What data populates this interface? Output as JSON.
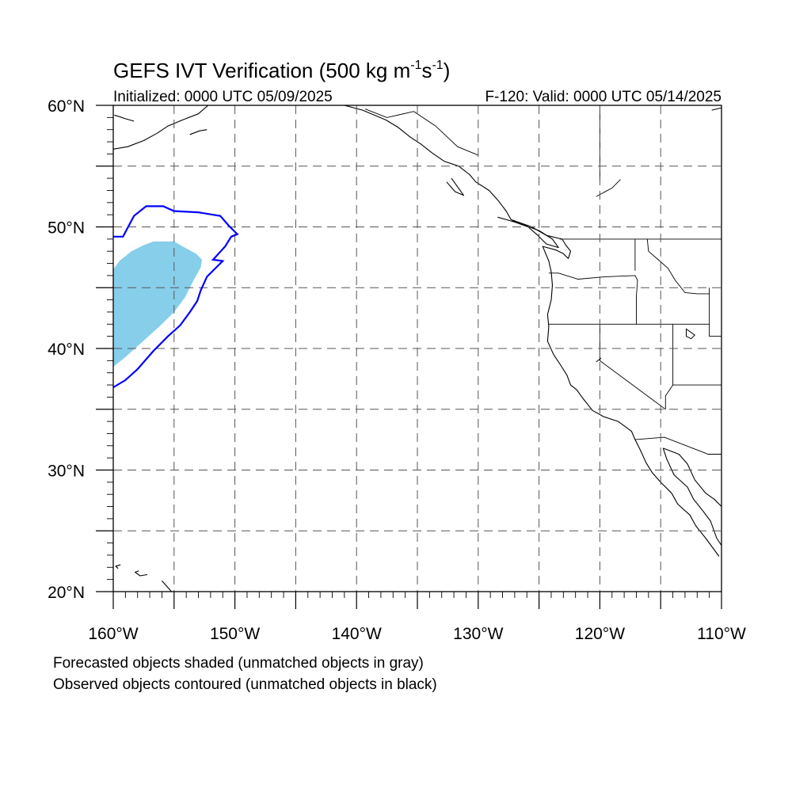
{
  "figure": {
    "title_main": "GEFS IVT Verification (500 kg m",
    "title_sup1": "-1",
    "title_mid": "s",
    "title_sup2": "-1",
    "title_end": ")",
    "init_label": "Initialized: 0000 UTC 05/09/2025",
    "valid_label": "F-120: Valid: 0000 UTC 05/14/2025",
    "footnote_1": "Forecasted objects shaded (unmatched objects in gray)",
    "footnote_2": "Observed objects contoured (unmatched objects in black)"
  },
  "map": {
    "lon_range": [
      -160,
      -110
    ],
    "lat_range": [
      20,
      60
    ],
    "grid": "dashed every 5 degrees",
    "lat_labels": [
      "20°N",
      "30°N",
      "40°N",
      "50°N",
      "60°N"
    ],
    "lon_labels": [
      "160°W",
      "150°W",
      "140°W",
      "130°W",
      "120°W",
      "110°W"
    ],
    "colors": {
      "forecast_fill": "#87ceeb",
      "observed_contour": "#0000ff",
      "coastline": "#000000",
      "grid": "#555555"
    },
    "forecast_object_outline": [
      [
        -160,
        38.5
      ],
      [
        -159.1,
        39.2
      ],
      [
        -158.1,
        40.1
      ],
      [
        -157.1,
        41
      ],
      [
        -156.1,
        41.9
      ],
      [
        -155,
        43
      ],
      [
        -154.1,
        44.2
      ],
      [
        -153.4,
        45.6
      ],
      [
        -152.8,
        46.7
      ],
      [
        -152.7,
        47.3
      ],
      [
        -153.2,
        47.8
      ],
      [
        -154.3,
        48.4
      ],
      [
        -155,
        48.8
      ],
      [
        -156.7,
        48.8
      ],
      [
        -157.5,
        48.5
      ],
      [
        -158.5,
        48
      ],
      [
        -159.5,
        47.2
      ],
      [
        -160,
        46.5
      ]
    ],
    "observed_object_contour": [
      [
        -160,
        36.8
      ],
      [
        -159,
        37.4
      ],
      [
        -158,
        38.3
      ],
      [
        -156.7,
        39.8
      ],
      [
        -155.5,
        41
      ],
      [
        -154.5,
        41.9
      ],
      [
        -153.7,
        43
      ],
      [
        -153.1,
        43.9
      ],
      [
        -152.8,
        44.8
      ],
      [
        -152.3,
        45.9
      ],
      [
        -151.4,
        46.8
      ],
      [
        -151,
        47.2
      ],
      [
        -151.8,
        47.3
      ],
      [
        -150.8,
        48.4
      ],
      [
        -150.3,
        49.2
      ],
      [
        -149.8,
        49.4
      ],
      [
        -150.5,
        50.1
      ],
      [
        -151.2,
        50.9
      ],
      [
        -153,
        51.2
      ],
      [
        -155,
        51.3
      ],
      [
        -155.9,
        51.7
      ],
      [
        -157.3,
        51.7
      ],
      [
        -158.3,
        50.9
      ],
      [
        -159.2,
        49.2
      ],
      [
        -160,
        49.2
      ]
    ],
    "coastlines": [
      [
        [
          -160,
          56.4
        ],
        [
          -158.8,
          56.6
        ],
        [
          -157.5,
          57.1
        ],
        [
          -156.4,
          57.7
        ],
        [
          -155.5,
          58.3
        ],
        [
          -154.3,
          58.8
        ],
        [
          -153,
          59.3
        ],
        [
          -152.2,
          60
        ]
      ],
      [
        [
          -159.9,
          59.2
        ],
        [
          -159,
          58.9
        ],
        [
          -158.3,
          58.7
        ]
      ],
      [
        [
          -153.7,
          57.6
        ],
        [
          -152.9,
          57.9
        ],
        [
          -152.3,
          58
        ]
      ],
      [
        [
          -141,
          60
        ],
        [
          -139.5,
          59.6
        ],
        [
          -137.6,
          58.8
        ],
        [
          -136.6,
          58.2
        ],
        [
          -135.6,
          57.4
        ],
        [
          -134.7,
          56.8
        ],
        [
          -133.8,
          56.1
        ],
        [
          -132.8,
          55.4
        ],
        [
          -131.6,
          55
        ],
        [
          -130.7,
          54.3
        ],
        [
          -130.2,
          53.7
        ],
        [
          -129.1,
          53
        ],
        [
          -128.3,
          52.1
        ],
        [
          -127.7,
          51.3
        ],
        [
          -127.3,
          50.6
        ],
        [
          -125.6,
          50
        ],
        [
          -124.4,
          49.3
        ],
        [
          -123.1,
          49
        ],
        [
          -122.8,
          48.5
        ],
        [
          -122.4,
          48
        ],
        [
          -122.6,
          47.4
        ],
        [
          -123,
          47.8
        ],
        [
          -123.6,
          48.1
        ],
        [
          -124.7,
          48.4
        ],
        [
          -124.2,
          47.2
        ],
        [
          -124,
          46.3
        ],
        [
          -123.9,
          45.2
        ],
        [
          -124,
          44
        ],
        [
          -124.3,
          42.8
        ],
        [
          -124.2,
          41.8
        ],
        [
          -124.3,
          40.6
        ],
        [
          -123.8,
          39.5
        ],
        [
          -123.2,
          38.6
        ],
        [
          -122.7,
          37.8
        ],
        [
          -122.4,
          37
        ],
        [
          -121.9,
          36.6
        ],
        [
          -121.4,
          35.9
        ],
        [
          -120.6,
          34.9
        ],
        [
          -119.7,
          34.4
        ],
        [
          -118.5,
          34
        ],
        [
          -117.4,
          33.2
        ],
        [
          -117.1,
          32.5
        ],
        [
          -116.7,
          31.7
        ],
        [
          -116.2,
          30.6
        ],
        [
          -115.7,
          29.8
        ],
        [
          -115,
          29
        ],
        [
          -114.1,
          28.1
        ],
        [
          -113.6,
          27.2
        ],
        [
          -112.6,
          26.3
        ],
        [
          -112.1,
          25.4
        ],
        [
          -111.3,
          24.4
        ],
        [
          -110.2,
          22.9
        ]
      ],
      [
        [
          -114.8,
          31.8
        ],
        [
          -114.5,
          30.9
        ],
        [
          -113.9,
          29.6
        ],
        [
          -112.8,
          28.6
        ],
        [
          -112.3,
          27.6
        ],
        [
          -111.5,
          26.6
        ],
        [
          -110.9,
          25.8
        ],
        [
          -110.4,
          24.4
        ],
        [
          -110,
          23.8
        ]
      ],
      [
        [
          -114.8,
          31.8
        ],
        [
          -113.5,
          31.3
        ],
        [
          -112.8,
          30.5
        ],
        [
          -112.2,
          29.2
        ],
        [
          -111.3,
          28.1
        ],
        [
          -110.6,
          27.6
        ],
        [
          -110,
          27
        ]
      ],
      [
        [
          -128.4,
          50.8
        ],
        [
          -127,
          50.4
        ],
        [
          -125.9,
          50
        ],
        [
          -125.1,
          49.3
        ],
        [
          -124.4,
          48.6
        ],
        [
          -123.4,
          48.3
        ],
        [
          -123.9,
          49
        ],
        [
          -125,
          49.7
        ],
        [
          -127.2,
          50.5
        ]
      ],
      [
        [
          -132.2,
          54
        ],
        [
          -131.7,
          53.3
        ],
        [
          -131.2,
          52.6
        ],
        [
          -131.9,
          52.9
        ],
        [
          -132.6,
          53.7
        ]
      ],
      [
        [
          -156,
          20.9
        ],
        [
          -155.3,
          20.1
        ],
        [
          -154.9,
          19.6
        ],
        [
          -155.6,
          19.1
        ],
        [
          -155.9,
          19.8
        ]
      ],
      [
        [
          -157.2,
          21.4
        ],
        [
          -157.8,
          21.3
        ],
        [
          -158.2,
          21.6
        ],
        [
          -157.9,
          21.7
        ]
      ],
      [
        [
          -159.4,
          22.2
        ],
        [
          -159.8,
          22.1
        ],
        [
          -159.6,
          21.9
        ]
      ],
      [
        [
          -110.8,
          59.6
        ],
        [
          -110,
          59.8
        ]
      ]
    ],
    "borders": [
      [
        [
          -123.3,
          49
        ],
        [
          -110,
          49
        ]
      ],
      [
        [
          -141,
          60
        ],
        [
          -140.9,
          60
        ]
      ],
      [
        [
          -139.3,
          59.7
        ],
        [
          -137.5,
          59
        ],
        [
          -135.3,
          59.5
        ],
        [
          -133.5,
          58.3
        ],
        [
          -131.7,
          56.6
        ],
        [
          -130,
          55.9
        ]
      ],
      [
        [
          -124.2,
          46.2
        ],
        [
          -123.4,
          46.2
        ],
        [
          -121.8,
          45.7
        ],
        [
          -119.5,
          45.9
        ],
        [
          -117.1,
          46
        ],
        [
          -116.9,
          45.6
        ],
        [
          -117,
          44.3
        ],
        [
          -117,
          42
        ]
      ],
      [
        [
          -117.1,
          49
        ],
        [
          -117.1,
          46.4
        ]
      ],
      [
        [
          -116.1,
          49
        ],
        [
          -116,
          48
        ],
        [
          -115.2,
          47.3
        ],
        [
          -114.4,
          46.6
        ],
        [
          -113.8,
          45.6
        ],
        [
          -113,
          44.6
        ],
        [
          -112,
          44.5
        ],
        [
          -111,
          44.5
        ]
      ],
      [
        [
          -124.2,
          42
        ],
        [
          -111,
          42
        ]
      ],
      [
        [
          -120,
          42
        ],
        [
          -120,
          39
        ],
        [
          -114.6,
          35
        ]
      ],
      [
        [
          -114,
          42
        ],
        [
          -114,
          37
        ],
        [
          -114.6,
          36.1
        ],
        [
          -114.6,
          35
        ]
      ],
      [
        [
          -114,
          37
        ],
        [
          -110,
          37
        ]
      ],
      [
        [
          -111,
          45
        ],
        [
          -111,
          41
        ],
        [
          -110,
          41
        ]
      ],
      [
        [
          -117.1,
          32.5
        ],
        [
          -114.7,
          32.7
        ],
        [
          -111.1,
          31.3
        ],
        [
          -110,
          31.3
        ]
      ],
      [
        [
          -120.3,
          52.5
        ],
        [
          -119,
          53.2
        ],
        [
          -118.3,
          53.9
        ]
      ],
      [
        [
          -120,
          60
        ],
        [
          -120,
          53.8
        ]
      ]
    ],
    "lakes": [
      [
        [
          -112.9,
          41.6
        ],
        [
          -112.2,
          41.1
        ],
        [
          -112.5,
          40.8
        ],
        [
          -112.9,
          41
        ]
      ],
      [
        [
          -120.3,
          38.9
        ],
        [
          -119.9,
          39.2
        ]
      ]
    ]
  }
}
